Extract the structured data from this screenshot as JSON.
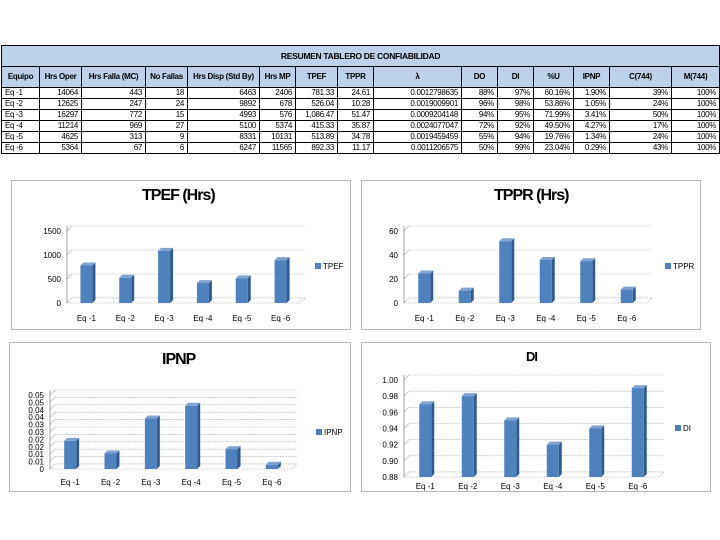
{
  "table": {
    "title": "RESUMEN TABLERO DE CONFIABILIDAD",
    "headers": [
      "Equipo",
      "Hrs Oper",
      "Hrs Falla (MC)",
      "No Fallas",
      "Hrs Disp (Std By)",
      "Hrs MP",
      "TPEF",
      "TPPR",
      "λ",
      "DO",
      "DI",
      "%U",
      "IPNP",
      "C(744)",
      "M(744)"
    ],
    "rows": [
      [
        "Eq -1",
        "14064",
        "443",
        "18",
        "6463",
        "2406",
        "781.33",
        "24.61",
        "0.0012798635",
        "88%",
        "97%",
        "60.16%",
        "1.90%",
        "39%",
        "100%"
      ],
      [
        "Eq -2",
        "12625",
        "247",
        "24",
        "9892",
        "678",
        "526.04",
        "10.28",
        "0.0019009901",
        "96%",
        "98%",
        "53.86%",
        "1.05%",
        "24%",
        "100%"
      ],
      [
        "Eq -3",
        "16297",
        "772",
        "15",
        "4993",
        "576",
        "1,086.47",
        "51.47",
        "0.0009204148",
        "94%",
        "95%",
        "71.99%",
        "3.41%",
        "50%",
        "100%"
      ],
      [
        "Eq -4",
        "11214",
        "969",
        "27",
        "5100",
        "5374",
        "415.33",
        "35.87",
        "0.0024077047",
        "72%",
        "92%",
        "49.50%",
        "4.27%",
        "17%",
        "100%"
      ],
      [
        "Eq -5",
        "4625",
        "313",
        "9",
        "8331",
        "10131",
        "513.89",
        "34.78",
        "0.0019459459",
        "55%",
        "94%",
        "19.76%",
        "1.34%",
        "24%",
        "100%"
      ],
      [
        "Eq -6",
        "5364",
        "67",
        "6",
        "6247",
        "11565",
        "892.33",
        "11.17",
        "0.0011206575",
        "50%",
        "99%",
        "23.04%",
        "0.29%",
        "43%",
        "100%"
      ]
    ]
  },
  "chart_data": [
    {
      "type": "bar",
      "title": "TPEF (Hrs)",
      "categories": [
        "Eq -1",
        "Eq -2",
        "Eq -3",
        "Eq -4",
        "Eq -5",
        "Eq -6"
      ],
      "series": [
        {
          "name": "TPEF",
          "values": [
            781.33,
            526.04,
            1086.47,
            415.33,
            513.89,
            892.33
          ]
        }
      ],
      "ylim": [
        0,
        1500
      ],
      "yticks": [
        "0",
        "500",
        "1000",
        "1500"
      ],
      "ytick_values": [
        0,
        500,
        1000,
        1500
      ],
      "grid": true,
      "legend": "right",
      "color": "#4f81bd"
    },
    {
      "type": "bar",
      "title": "TPPR (Hrs)",
      "categories": [
        "Eq -1",
        "Eq -2",
        "Eq -3",
        "Eq -4",
        "Eq -5",
        "Eq -6"
      ],
      "series": [
        {
          "name": "TPPR",
          "values": [
            24.61,
            10.28,
            51.47,
            35.87,
            34.78,
            11.17
          ]
        }
      ],
      "ylim": [
        0,
        60
      ],
      "yticks": [
        "0",
        "20",
        "40",
        "60"
      ],
      "ytick_values": [
        0,
        20,
        40,
        60
      ],
      "grid": true,
      "legend": "right",
      "color": "#4f81bd"
    },
    {
      "type": "bar",
      "title": "IPNP",
      "categories": [
        "Eq -1",
        "Eq -2",
        "Eq -3",
        "Eq -4",
        "Eq -5",
        "Eq -6"
      ],
      "series": [
        {
          "name": "IPNP",
          "values": [
            0.019,
            0.0105,
            0.0341,
            0.0427,
            0.0134,
            0.0029
          ]
        }
      ],
      "ylim": [
        0,
        0.05
      ],
      "yticks": [
        "0",
        "0.01",
        "0.01",
        "0.02",
        "0.02",
        "0.03",
        "0.03",
        "0.04",
        "0.04",
        "0.05",
        "0.05"
      ],
      "ytick_values": [
        0,
        0.005,
        0.01,
        0.015,
        0.02,
        0.025,
        0.03,
        0.035,
        0.04,
        0.045,
        0.05
      ],
      "grid": true,
      "legend": "right",
      "color": "#4f81bd"
    },
    {
      "type": "bar",
      "title": "DI",
      "categories": [
        "Eq -1",
        "Eq -2",
        "Eq -3",
        "Eq -4",
        "Eq -5",
        "Eq -6"
      ],
      "series": [
        {
          "name": "DI",
          "values": [
            0.97,
            0.98,
            0.95,
            0.92,
            0.94,
            0.99
          ]
        }
      ],
      "ylim": [
        0.88,
        1.0
      ],
      "yticks": [
        "0.88",
        "0.90",
        "0.92",
        "0.94",
        "0.96",
        "0.98",
        "1.00"
      ],
      "ytick_values": [
        0.88,
        0.9,
        0.92,
        0.94,
        0.96,
        0.98,
        1.0
      ],
      "grid": true,
      "legend": "right",
      "color": "#4f81bd"
    }
  ]
}
